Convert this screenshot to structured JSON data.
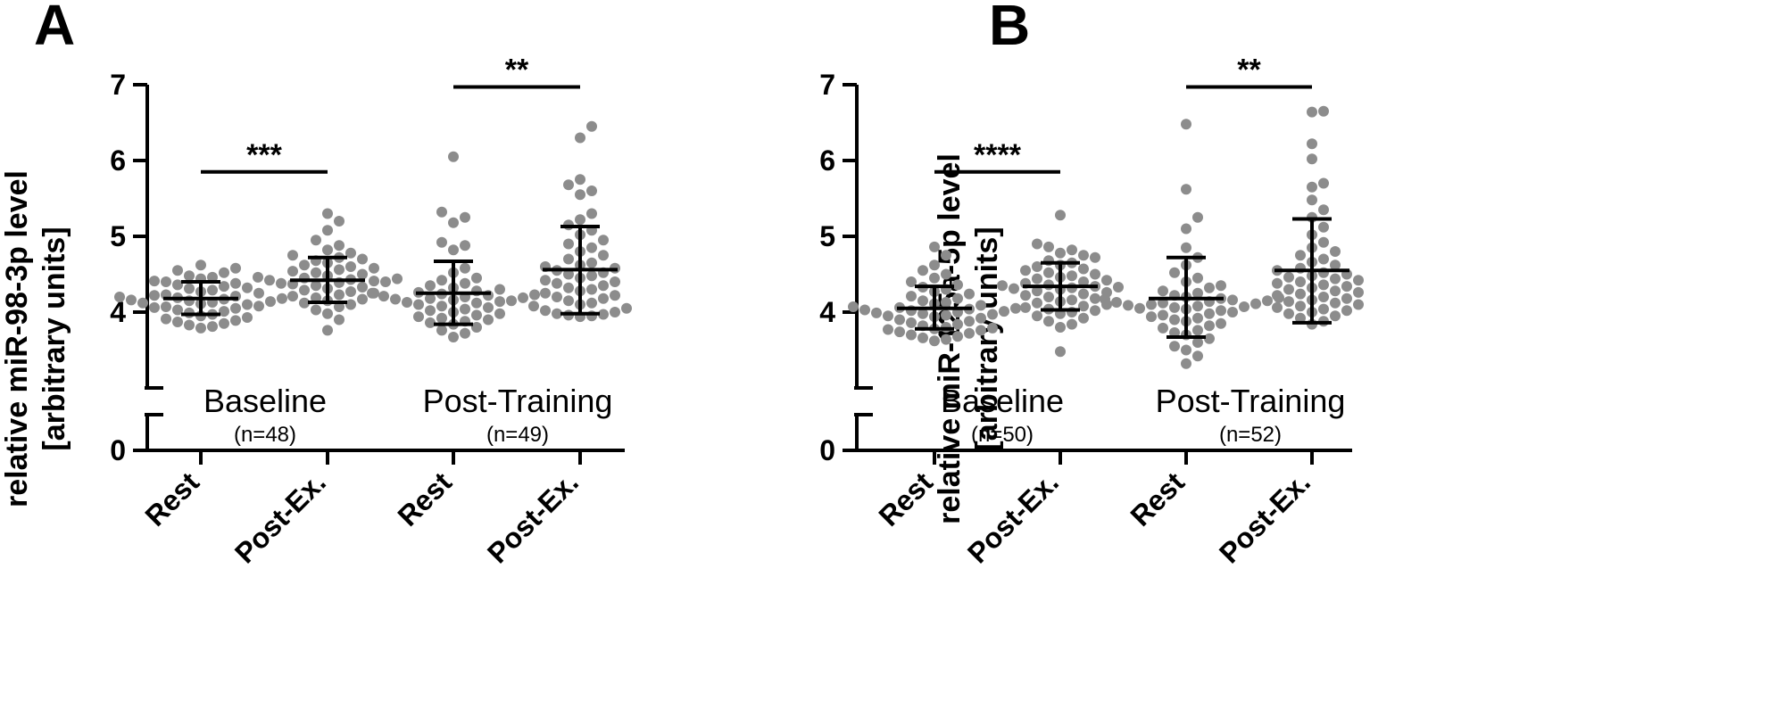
{
  "chart_data": [
    {
      "type": "scatter",
      "panel": "A",
      "ylabel_line1": "relative miR-98-3p level",
      "ylabel_line2": "[arbitrary units]",
      "yticks": [
        "0",
        "4",
        "5",
        "6",
        "7"
      ],
      "ylim_upper": [
        3,
        7
      ],
      "axis_break": true,
      "categories": [
        "Rest",
        "Post-Ex.",
        "Rest",
        "Post-Ex."
      ],
      "groups": [
        {
          "label": "Baseline",
          "n": "(n=48)"
        },
        {
          "label": "Post-Training",
          "n": "(n=49)"
        }
      ],
      "significance": [
        {
          "from": 0,
          "to": 1,
          "y": 5.85,
          "label": "***"
        },
        {
          "from": 2,
          "to": 3,
          "y": 6.97,
          "label": "**"
        }
      ],
      "series": [
        {
          "mean": 4.18,
          "sd_low": 3.97,
          "sd_high": 4.4,
          "values": [
            4.62,
            4.58,
            4.55,
            4.52,
            4.48,
            4.46,
            4.44,
            4.41,
            4.4,
            4.38,
            4.36,
            4.34,
            4.32,
            4.31,
            4.29,
            4.27,
            4.25,
            4.23,
            4.22,
            4.21,
            4.2,
            4.19,
            4.18,
            4.17,
            4.16,
            4.15,
            4.14,
            4.13,
            4.12,
            4.11,
            4.1,
            4.08,
            4.07,
            4.06,
            4.05,
            4.03,
            4.01,
            3.99,
            3.97,
            3.95,
            3.93,
            3.91,
            3.89,
            3.87,
            3.85,
            3.83,
            3.81,
            3.79
          ]
        },
        {
          "mean": 4.42,
          "sd_low": 4.13,
          "sd_high": 4.72,
          "values": [
            5.3,
            5.2,
            5.08,
            4.95,
            4.88,
            4.82,
            4.78,
            4.75,
            4.72,
            4.7,
            4.68,
            4.65,
            4.62,
            4.6,
            4.58,
            4.56,
            4.54,
            4.52,
            4.5,
            4.48,
            4.46,
            4.45,
            4.44,
            4.43,
            4.42,
            4.41,
            4.4,
            4.39,
            4.38,
            4.37,
            4.35,
            4.33,
            4.31,
            4.29,
            4.27,
            4.25,
            4.23,
            4.21,
            4.19,
            4.17,
            4.15,
            4.12,
            4.1,
            4.07,
            4.03,
            3.98,
            3.9,
            3.76
          ]
        },
        {
          "mean": 4.25,
          "sd_low": 3.84,
          "sd_high": 4.67,
          "values": [
            6.05,
            5.32,
            5.25,
            5.18,
            4.92,
            4.88,
            4.82,
            4.58,
            4.52,
            4.45,
            4.42,
            4.38,
            4.35,
            4.32,
            4.3,
            4.28,
            4.26,
            4.25,
            4.24,
            4.23,
            4.22,
            4.21,
            4.2,
            4.19,
            4.18,
            4.17,
            4.16,
            4.15,
            4.14,
            4.13,
            4.12,
            4.1,
            4.08,
            4.06,
            4.04,
            4.02,
            4.0,
            3.98,
            3.96,
            3.94,
            3.92,
            3.9,
            3.88,
            3.86,
            3.84,
            3.8,
            3.76,
            3.72,
            3.67
          ]
        },
        {
          "mean": 4.56,
          "sd_low": 3.98,
          "sd_high": 5.13,
          "values": [
            6.45,
            6.3,
            5.75,
            5.68,
            5.6,
            5.55,
            5.3,
            5.22,
            5.15,
            5.08,
            5.02,
            4.95,
            4.9,
            4.85,
            4.8,
            4.75,
            4.7,
            4.65,
            4.62,
            4.6,
            4.58,
            4.55,
            4.52,
            4.5,
            4.48,
            4.45,
            4.42,
            4.4,
            4.38,
            4.35,
            4.32,
            4.3,
            4.28,
            4.25,
            4.22,
            4.2,
            4.18,
            4.15,
            4.12,
            4.1,
            4.08,
            4.05,
            4.02,
            4.0,
            3.98,
            3.97,
            3.96,
            3.95,
            3.94
          ]
        }
      ]
    },
    {
      "type": "scatter",
      "panel": "B",
      "ylabel_line1": "relative miR-125a-5p level",
      "ylabel_line2": "[arbitrary units]",
      "yticks": [
        "0",
        "4",
        "5",
        "6",
        "7"
      ],
      "ylim_upper": [
        3,
        7
      ],
      "axis_break": true,
      "categories": [
        "Rest",
        "Post-Ex.",
        "Rest",
        "Post-Ex."
      ],
      "groups": [
        {
          "label": "Baseline",
          "n": "(n=50)"
        },
        {
          "label": "Post-Training",
          "n": "(n=52)"
        }
      ],
      "significance": [
        {
          "from": 0,
          "to": 1,
          "y": 5.85,
          "label": "****"
        },
        {
          "from": 2,
          "to": 3,
          "y": 6.97,
          "label": "**"
        }
      ],
      "series": [
        {
          "mean": 4.05,
          "sd_low": 3.78,
          "sd_high": 4.34,
          "values": [
            4.86,
            4.75,
            4.62,
            4.55,
            4.5,
            4.45,
            4.4,
            4.36,
            4.33,
            4.3,
            4.27,
            4.24,
            4.21,
            4.18,
            4.15,
            4.13,
            4.11,
            4.09,
            4.07,
            4.06,
            4.05,
            4.04,
            4.03,
            4.02,
            4.01,
            4.0,
            3.99,
            3.98,
            3.97,
            3.96,
            3.95,
            3.94,
            3.92,
            3.9,
            3.88,
            3.86,
            3.84,
            3.82,
            3.8,
            3.79,
            3.78,
            3.77,
            3.76,
            3.74,
            3.72,
            3.7,
            3.68,
            3.66,
            3.64,
            3.62
          ]
        },
        {
          "mean": 4.34,
          "sd_low": 4.03,
          "sd_high": 4.65,
          "values": [
            5.28,
            4.9,
            4.86,
            4.82,
            4.78,
            4.75,
            4.72,
            4.68,
            4.65,
            4.62,
            4.6,
            4.57,
            4.55,
            4.52,
            4.5,
            4.48,
            4.46,
            4.44,
            4.42,
            4.4,
            4.38,
            4.36,
            4.35,
            4.34,
            4.33,
            4.32,
            4.31,
            4.3,
            4.28,
            4.26,
            4.24,
            4.22,
            4.2,
            4.18,
            4.16,
            4.14,
            4.12,
            4.1,
            4.08,
            4.06,
            4.04,
            4.02,
            4.0,
            3.98,
            3.95,
            3.92,
            3.88,
            3.84,
            3.8,
            3.48
          ]
        },
        {
          "mean": 4.18,
          "sd_low": 3.67,
          "sd_high": 4.72,
          "values": [
            6.48,
            5.62,
            5.25,
            5.1,
            4.85,
            4.72,
            4.62,
            4.52,
            4.45,
            4.4,
            4.35,
            4.32,
            4.28,
            4.25,
            4.22,
            4.2,
            4.19,
            4.18,
            4.17,
            4.16,
            4.15,
            4.14,
            4.13,
            4.12,
            4.11,
            4.1,
            4.09,
            4.08,
            4.07,
            4.06,
            4.05,
            4.04,
            4.02,
            4.0,
            3.98,
            3.96,
            3.94,
            3.92,
            3.9,
            3.88,
            3.85,
            3.82,
            3.79,
            3.76,
            3.73,
            3.7,
            3.65,
            3.6,
            3.55,
            3.5,
            3.42,
            3.32
          ]
        },
        {
          "mean": 4.55,
          "sd_low": 3.86,
          "sd_high": 5.23,
          "values": [
            6.65,
            6.64,
            6.22,
            6.02,
            5.7,
            5.65,
            5.48,
            5.35,
            5.25,
            5.12,
            5.02,
            4.92,
            4.85,
            4.8,
            4.75,
            4.7,
            4.66,
            4.62,
            4.58,
            4.55,
            4.52,
            4.5,
            4.48,
            4.46,
            4.44,
            4.42,
            4.4,
            4.38,
            4.36,
            4.34,
            4.32,
            4.3,
            4.28,
            4.26,
            4.24,
            4.22,
            4.2,
            4.18,
            4.16,
            4.14,
            4.12,
            4.1,
            4.08,
            4.06,
            4.04,
            4.02,
            4.0,
            3.98,
            3.95,
            3.92,
            3.88,
            3.84
          ]
        }
      ]
    }
  ]
}
